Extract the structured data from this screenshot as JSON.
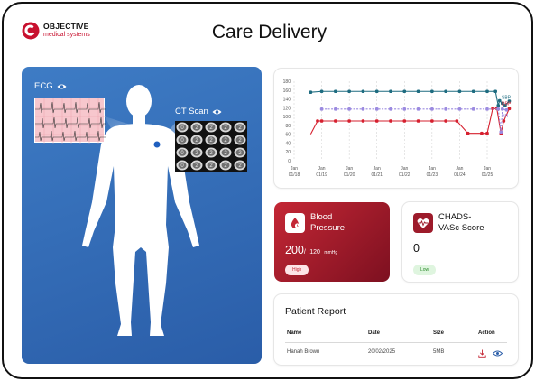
{
  "brand": {
    "name": "OBJECTIVE",
    "sub": "medical systems",
    "accent": "#c8102e"
  },
  "header": {
    "title": "Care Delivery"
  },
  "body_view": {
    "ecg_label": "ECG",
    "ct_label": "CT Scan",
    "ct_slice_labels": [
      "0",
      "2",
      "2",
      "2",
      "2",
      "0",
      "2",
      "2",
      "2",
      "2",
      "0",
      "2",
      "2",
      "2",
      "2",
      "0",
      "2",
      "2",
      "2",
      "2"
    ]
  },
  "chart_data": {
    "type": "line",
    "x": [
      "Jan 01/18",
      "Jan 01/19",
      "Jan 01/20",
      "Jan 01/21",
      "Jan 01/22",
      "Jan 01/23",
      "Jan 01/24",
      "Jan 01/25"
    ],
    "x_ticks": [
      {
        "top": "Jan",
        "bottom": "01/18"
      },
      {
        "top": "Jan",
        "bottom": "01/19"
      },
      {
        "top": "Jan",
        "bottom": "01/20"
      },
      {
        "top": "Jan",
        "bottom": "01/21"
      },
      {
        "top": "Jan",
        "bottom": "01/22"
      },
      {
        "top": "Jan",
        "bottom": "01/23"
      },
      {
        "top": "Jan",
        "bottom": "01/24"
      },
      {
        "top": "Jan",
        "bottom": "01/25"
      }
    ],
    "y_ticks": [
      0,
      20,
      40,
      60,
      80,
      100,
      120,
      140,
      160,
      180
    ],
    "ylim": [
      0,
      180
    ],
    "series": [
      {
        "name": "SBP",
        "color": "#1e6c80",
        "points": [
          [
            0.6,
            155
          ],
          [
            1.0,
            157
          ],
          [
            1.5,
            157
          ],
          [
            2.0,
            157
          ],
          [
            2.5,
            157
          ],
          [
            3.0,
            157
          ],
          [
            3.5,
            157
          ],
          [
            4.0,
            157
          ],
          [
            4.5,
            157
          ],
          [
            5.0,
            157
          ],
          [
            5.5,
            157
          ],
          [
            6.0,
            157
          ],
          [
            6.5,
            157
          ],
          [
            7.0,
            157
          ],
          [
            7.3,
            157
          ],
          [
            7.4,
            125
          ],
          [
            7.45,
            136
          ],
          [
            7.55,
            130
          ],
          [
            7.65,
            125
          ],
          [
            7.8,
            135
          ]
        ]
      },
      {
        "name": "DBP",
        "color": "#d6202f",
        "points": [
          [
            0.6,
            60
          ],
          [
            0.85,
            90
          ],
          [
            1.0,
            90
          ],
          [
            1.5,
            90
          ],
          [
            2.0,
            90
          ],
          [
            2.5,
            90
          ],
          [
            3.0,
            90
          ],
          [
            3.5,
            90
          ],
          [
            4.0,
            90
          ],
          [
            4.5,
            90
          ],
          [
            5.0,
            90
          ],
          [
            5.5,
            90
          ],
          [
            5.9,
            90
          ],
          [
            6.3,
            62
          ],
          [
            6.8,
            62
          ],
          [
            7.0,
            62
          ],
          [
            7.2,
            118
          ],
          [
            7.35,
            118
          ],
          [
            7.5,
            62
          ],
          [
            7.6,
            90
          ],
          [
            7.8,
            118
          ]
        ]
      },
      {
        "name": "HR",
        "color": "#9b8ae0",
        "points": [
          [
            1.0,
            117
          ],
          [
            1.5,
            117
          ],
          [
            2.0,
            117
          ],
          [
            2.5,
            117
          ],
          [
            3.0,
            117
          ],
          [
            3.5,
            117
          ],
          [
            4.0,
            117
          ],
          [
            4.5,
            117
          ],
          [
            5.0,
            117
          ],
          [
            5.5,
            117
          ],
          [
            6.0,
            117
          ],
          [
            6.5,
            117
          ],
          [
            7.0,
            117
          ],
          [
            7.4,
            117
          ],
          [
            7.5,
            65
          ],
          [
            7.55,
            117
          ],
          [
            7.7,
            115
          ]
        ]
      }
    ],
    "end_labels": [
      "SBP",
      "DBP",
      "HR"
    ]
  },
  "bp_card": {
    "title_line1": "Blood",
    "title_line2": "Pressure",
    "sys": "200",
    "sep": "/",
    "dia": "120",
    "unit": "mmHg",
    "badge": "High"
  },
  "chadsvasc_card": {
    "title_line1": "CHADS-",
    "title_line2": "VASc Score",
    "value": "0",
    "badge": "Low"
  },
  "report": {
    "title": "Patient Report",
    "columns": [
      "Name",
      "Date",
      "Size",
      "Action"
    ],
    "rows": [
      {
        "name": "Hanah Brown",
        "date": "20/02/2025",
        "size": "5MB"
      }
    ]
  }
}
